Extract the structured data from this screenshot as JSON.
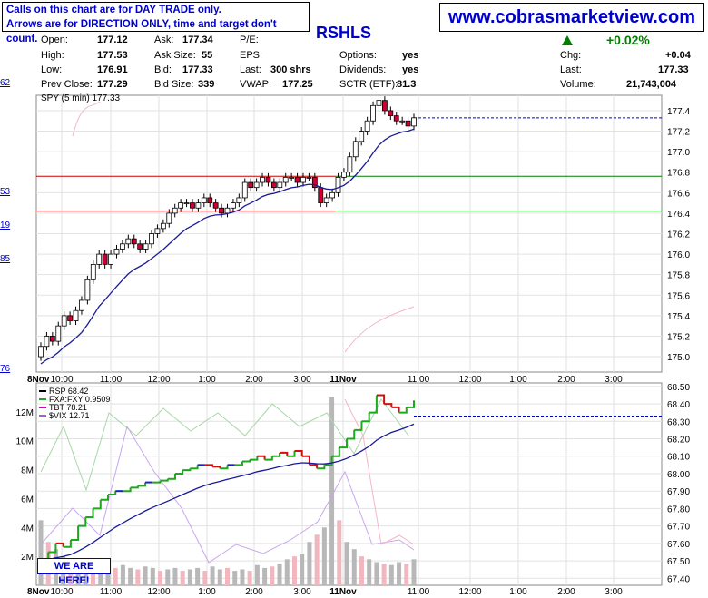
{
  "notice": {
    "line1": "Calls on this chart are for DAY TRADE only.",
    "line2": "Arrows are for DIRECTION ONLY, time and target don't count."
  },
  "website": "www.cobrasmarketview.com",
  "ticker_label": "RSHLS",
  "quote": {
    "open_label": "Open:",
    "open": "177.12",
    "high_label": "High:",
    "high": "177.53",
    "low_label": "Low:",
    "low": "176.91",
    "prev_close_label": "Prev Close:",
    "prev_close": "177.29",
    "ask_label": "Ask:",
    "ask": "177.34",
    "ask_size_label": "Ask Size:",
    "ask_size": "55",
    "bid_label": "Bid:",
    "bid": "177.33",
    "bid_size_label": "Bid Size:",
    "bid_size": "339",
    "pe_label": "P/E:",
    "eps_label": "EPS:",
    "last_size_label": "Last:",
    "last_size": "300 shrs",
    "vwap_label": "VWAP:",
    "vwap": "177.25",
    "options_label": "Options:",
    "options": "yes",
    "dividends_label": "Dividends:",
    "dividends": "yes",
    "sctr_label": "SCTR (ETF):",
    "sctr": "81.3",
    "change_pct": "+0.02%",
    "chg_label": "Chg:",
    "chg": "+0.04",
    "last_label": "Last:",
    "last": "177.33",
    "volume_label": "Volume:",
    "volume": "21,743,004"
  },
  "left_clipped": [
    "62",
    "53",
    "19",
    "85",
    "76"
  ],
  "annotation": "WE ARE HERE!",
  "colors": {
    "up": "#000000",
    "down": "#cc0033",
    "ma": "#1a1a99",
    "hline_red": "#cc0000",
    "hline_green": "#008000",
    "dashed": "#0000cc",
    "rsp_up": "#1ea81e",
    "rsp_down": "#d01010",
    "rsp_flat": "#2020c0"
  },
  "chart_data": [
    {
      "type": "candlestick",
      "legend": "SPY (5 min) 177.33",
      "ylim": [
        174.85,
        177.55
      ],
      "yticks": [
        "177.4",
        "177.2",
        "177.0",
        "176.8",
        "176.6",
        "176.4",
        "176.2",
        "176.0",
        "175.8",
        "175.6",
        "175.4",
        "175.2",
        "175.0"
      ],
      "xticks": [
        "8Nov",
        "10:00",
        "11:00",
        "12:00",
        "1:00",
        "2:00",
        "3:00",
        "11Nov",
        "11:00",
        "12:00",
        "1:00",
        "2:00",
        "3:00"
      ],
      "closes": [
        175.1,
        175.2,
        175.15,
        175.3,
        175.4,
        175.35,
        175.45,
        175.55,
        175.75,
        175.9,
        176.0,
        175.9,
        176.0,
        176.05,
        176.1,
        176.15,
        176.1,
        176.05,
        176.1,
        176.2,
        176.25,
        176.3,
        176.4,
        176.45,
        176.5,
        176.5,
        176.45,
        176.5,
        176.55,
        176.5,
        176.45,
        176.4,
        176.45,
        176.5,
        176.55,
        176.7,
        176.65,
        176.7,
        176.75,
        176.7,
        176.65,
        176.7,
        176.75,
        176.75,
        176.7,
        176.75,
        176.75,
        176.65,
        176.5,
        176.55,
        176.6,
        176.75,
        176.8,
        176.95,
        177.1,
        177.2,
        177.3,
        177.45,
        177.5,
        177.4,
        177.35,
        177.3,
        177.3,
        177.25,
        177.33
      ],
      "horizontal_lines": [
        {
          "value": 176.76,
          "color": "#cc0000"
        },
        {
          "value": 176.42,
          "color": "#cc0000"
        },
        {
          "value": 177.33,
          "style": "dashed"
        }
      ]
    },
    {
      "type": "line",
      "legend": [
        {
          "name": "RSP",
          "value": "68.42"
        },
        {
          "name": "FXA:FXY",
          "value": "0.9509"
        },
        {
          "name": "TBT",
          "value": "78.21"
        },
        {
          "name": "$VIX",
          "value": "12.71"
        }
      ],
      "ylim_right": [
        67.36,
        68.52
      ],
      "yticks_right": [
        "68.50",
        "68.40",
        "68.30",
        "68.20",
        "68.10",
        "68.00",
        "67.90",
        "67.80",
        "67.70",
        "67.60",
        "67.50",
        "67.40"
      ],
      "yticks_left": [
        "12M",
        "10M",
        "8M",
        "6M",
        "4M",
        "2M"
      ],
      "xticks": [
        "8Nov",
        "10:00",
        "11:00",
        "12:00",
        "1:00",
        "2:00",
        "3:00",
        "11Nov",
        "11:00",
        "12:00",
        "1:00",
        "2:00",
        "3:00"
      ],
      "rsp_values": [
        67.5,
        67.55,
        67.6,
        67.58,
        67.62,
        67.7,
        67.75,
        67.8,
        67.85,
        67.88,
        67.9,
        67.9,
        67.92,
        67.93,
        67.95,
        67.95,
        67.96,
        67.97,
        68.0,
        68.02,
        68.03,
        68.05,
        68.05,
        68.04,
        68.03,
        68.05,
        68.05,
        68.07,
        68.08,
        68.1,
        68.08,
        68.1,
        68.12,
        68.1,
        68.13,
        68.1,
        68.05,
        68.03,
        68.05,
        68.1,
        68.15,
        68.2,
        68.25,
        68.3,
        68.35,
        68.45,
        68.4,
        68.38,
        68.35,
        68.38,
        68.42
      ],
      "volume_millions": [
        4.5,
        3.0,
        2.5,
        2.0,
        1.8,
        1.5,
        1.6,
        1.4,
        1.5,
        1.3,
        1.2,
        1.4,
        1.2,
        1.1,
        1.3,
        1.2,
        1.0,
        1.1,
        1.2,
        1.0,
        1.1,
        1.2,
        1.0,
        1.3,
        1.1,
        1.2,
        1.0,
        1.1,
        1.0,
        1.4,
        1.2,
        1.3,
        1.5,
        1.8,
        2.0,
        2.2,
        3.0,
        3.5,
        4.0,
        13.0,
        4.5,
        3.0,
        2.5,
        2.0,
        1.8,
        1.6,
        1.5,
        1.4,
        1.6,
        1.5,
        1.8
      ],
      "horizontal_lines": [
        {
          "value": 68.33,
          "style": "dashed"
        }
      ]
    }
  ]
}
